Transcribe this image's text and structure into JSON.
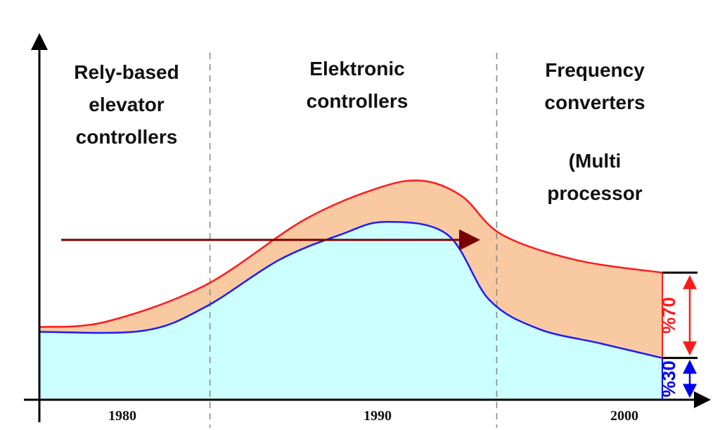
{
  "chart_data": {
    "type": "area",
    "title": "",
    "xlabel": "",
    "ylabel": "",
    "x_ticks": [
      "1980",
      "1990",
      "2000"
    ],
    "eras": [
      {
        "lines": [
          "Rely-based",
          "elevator",
          "controllers"
        ]
      },
      {
        "lines": [
          "Elektronic",
          "controllers"
        ]
      },
      {
        "lines": [
          "Frequency",
          "converters",
          "",
          "(Multi",
          "processor"
        ]
      }
    ],
    "series": [
      {
        "color": "#ff1a1a",
        "fill": "#f9c9a2",
        "points": [
          [
            1976.3,
            20.0
          ],
          [
            1979.0,
            21.5
          ],
          [
            1983.0,
            31.5
          ],
          [
            1987.0,
            49.5
          ],
          [
            1990.0,
            58.3
          ],
          [
            1991.8,
            60.3
          ],
          [
            1993.4,
            56.0
          ],
          [
            1995.0,
            45.5
          ],
          [
            1998.0,
            38.5
          ],
          [
            2001.5,
            35.0
          ]
        ]
      },
      {
        "color": "#1a1aff",
        "fill": "#ccffff",
        "points": [
          [
            1976.3,
            18.7
          ],
          [
            1980.5,
            19.0
          ],
          [
            1983.0,
            25.5
          ],
          [
            1986.0,
            38.5
          ],
          [
            1988.5,
            45.5
          ],
          [
            1990.3,
            49.0
          ],
          [
            1992.8,
            45.5
          ],
          [
            1994.5,
            27.5
          ],
          [
            1996.5,
            19.5
          ],
          [
            1999.0,
            15.5
          ],
          [
            2001.5,
            11.5
          ]
        ]
      }
    ],
    "reference_lines": [
      1983.2,
      1994.8
    ],
    "arrow": {
      "from": [
        1976.5,
        47.5
      ],
      "to": [
        1994.0,
        47.5
      ],
      "color": "#7a0000"
    },
    "annotations": [
      {
        "text": "%70",
        "color": "#ff1a1a",
        "value_from": 35.0,
        "value_to": 11.5
      },
      {
        "text": "%30",
        "color": "#0000ee",
        "value_from": 11.5,
        "value_to": 0
      }
    ]
  }
}
